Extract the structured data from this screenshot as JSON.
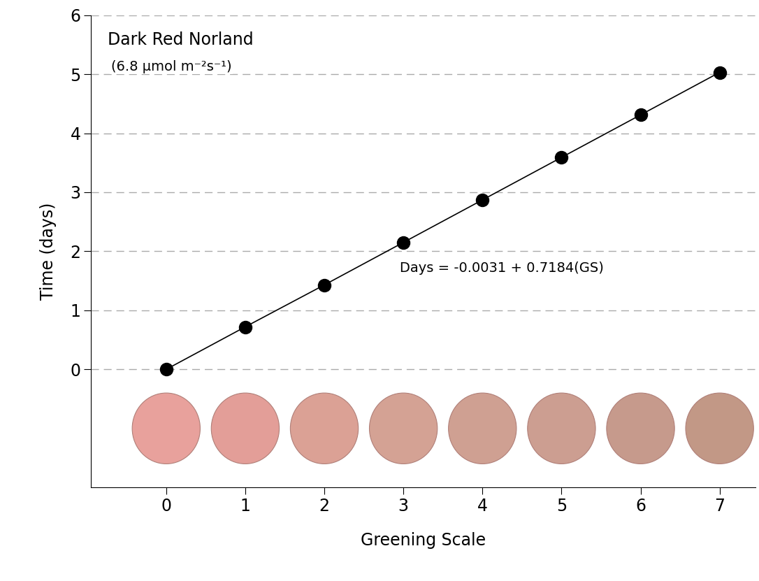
{
  "chart_data": {
    "type": "line",
    "x_label": "Greening Scale",
    "y_label": "Time (days)",
    "annotations": [
      "Dark Red Norland",
      "(6.8 μmol m⁻²s⁻¹)",
      "Days = -0.0031 + 0.7184(GS)"
    ],
    "x": [
      0,
      1,
      2,
      3,
      4,
      5,
      6,
      7
    ],
    "values": [
      0,
      0.72,
      1.43,
      2.15,
      2.87,
      3.59,
      4.31,
      5.03
    ],
    "color": "#000000",
    "marker": "o",
    "line_style": "solid",
    "xlim": [
      -0.95,
      7.45
    ],
    "xticks": [
      0,
      1,
      2,
      3,
      4,
      5,
      6,
      7
    ],
    "ylim": [
      -2,
      6
    ],
    "yticks": [
      0,
      1,
      2,
      3,
      4,
      5,
      6
    ],
    "grid": true
  }
}
